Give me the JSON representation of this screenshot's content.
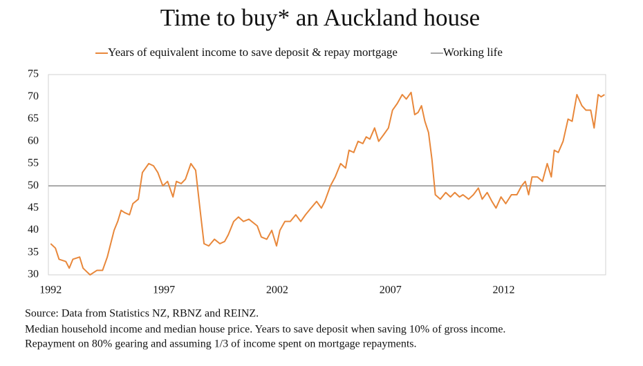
{
  "chart_data": {
    "type": "line",
    "title": "Time to buy* an Auckland house",
    "notes": [
      "Source: Data from Statistics NZ, RBNZ and REINZ.",
      "Median household income and median house price. Years to save deposit when saving 10% of gross income.",
      "Repayment on 80% gearing and assuming 1/3 of income spent on mortgage repayments."
    ],
    "x": [
      1992.0,
      1992.21,
      1992.37,
      1992.67,
      1992.82,
      1992.98,
      1993.28,
      1993.43,
      1993.74,
      1994.04,
      1994.29,
      1994.5,
      1994.65,
      1994.8,
      1994.96,
      1995.11,
      1995.26,
      1995.48,
      1995.63,
      1995.87,
      1996.05,
      1996.33,
      1996.54,
      1996.73,
      1996.95,
      1997.16,
      1997.4,
      1997.55,
      1997.76,
      1997.95,
      1998.19,
      1998.4,
      1998.61,
      1998.77,
      1998.98,
      1999.23,
      1999.47,
      1999.68,
      1999.84,
      2000.08,
      2000.29,
      2000.51,
      2000.75,
      2001.12,
      2001.3,
      2001.54,
      2001.76,
      2001.97,
      2002.12,
      2002.34,
      2002.58,
      2002.82,
      2003.04,
      2003.25,
      2003.49,
      2003.74,
      2003.95,
      2004.1,
      2004.35,
      2004.56,
      2004.8,
      2005.02,
      2005.17,
      2005.38,
      2005.57,
      2005.78,
      2005.93,
      2006.09,
      2006.3,
      2006.48,
      2006.7,
      2006.91,
      2007.09,
      2007.3,
      2007.52,
      2007.7,
      2007.91,
      2008.07,
      2008.22,
      2008.37,
      2008.52,
      2008.68,
      2008.83,
      2008.98,
      2009.2,
      2009.44,
      2009.65,
      2009.84,
      2010.05,
      2010.2,
      2010.45,
      2010.66,
      2010.88,
      2011.05,
      2011.27,
      2011.48,
      2011.66,
      2011.88,
      2012.09,
      2012.34,
      2012.58,
      2012.79,
      2012.95,
      2013.1,
      2013.25,
      2013.49,
      2013.71,
      2013.92,
      2014.1,
      2014.23,
      2014.41,
      2014.62,
      2014.84,
      2015.02,
      2015.23,
      2015.45,
      2015.63,
      2015.84,
      2015.99,
      2016.17,
      2016.3,
      2016.45
    ],
    "series": [
      {
        "name": "Years of equivalent income to save deposit & repay mortgage",
        "color": "#e8873a",
        "values": [
          37,
          36,
          33.5,
          33,
          31.5,
          33.5,
          34,
          31.5,
          30,
          31,
          31,
          34,
          37,
          40,
          42,
          44.5,
          44,
          43.5,
          46,
          47,
          53,
          55,
          54.5,
          53,
          50,
          51,
          47.5,
          51,
          50.5,
          51.5,
          55,
          53.5,
          44,
          37,
          36.5,
          38,
          37,
          37.5,
          39,
          42,
          43,
          42,
          42.5,
          41,
          38.5,
          38,
          40,
          36.5,
          40,
          42,
          42,
          43.5,
          42,
          43.5,
          45,
          46.5,
          45,
          46.5,
          50,
          52,
          55,
          54,
          58,
          57.5,
          60,
          59.5,
          61,
          60.5,
          63,
          60,
          61.5,
          63,
          67,
          68.5,
          70.5,
          69.5,
          71,
          66,
          66.5,
          68,
          64.5,
          62,
          56,
          48,
          47,
          48.5,
          47.5,
          48.5,
          47.5,
          48,
          47,
          48,
          49.5,
          47,
          48.5,
          46.5,
          45,
          47.5,
          46,
          48,
          48,
          50,
          51,
          48,
          52,
          52,
          51,
          55,
          52,
          58,
          57.5,
          60,
          65,
          64.5,
          70.5,
          68,
          67,
          67,
          63,
          70.5,
          70,
          70.5
        ]
      }
    ],
    "reference_lines": [
      {
        "name": "Working life",
        "value": 50,
        "color": "#a6a6a6"
      }
    ],
    "xlim": [
      1991.9,
      2016.5
    ],
    "xticks": [
      1992,
      1997,
      2002,
      2007,
      2012
    ],
    "ylim": [
      30,
      75
    ],
    "yticks": [
      30,
      35,
      40,
      45,
      50,
      55,
      60,
      65,
      70,
      75
    ],
    "grid": false
  }
}
